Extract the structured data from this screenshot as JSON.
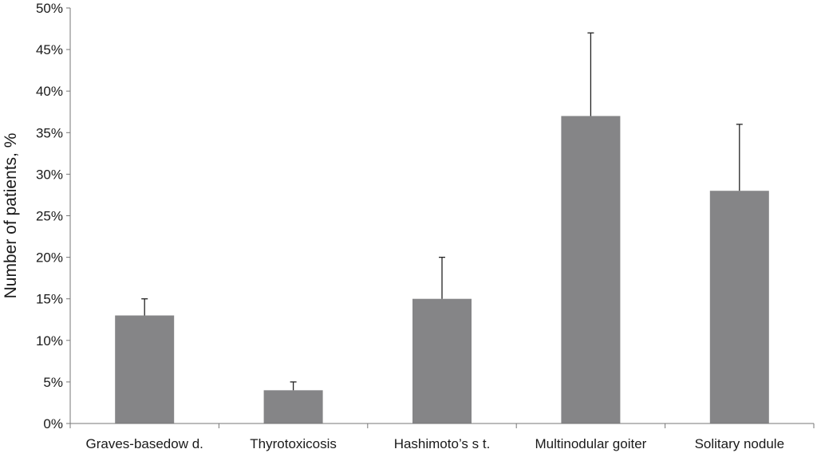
{
  "chart_data": {
    "type": "bar",
    "title": "",
    "xlabel": "",
    "ylabel": "Number of patients, %",
    "categories": [
      "Graves-basedow d.",
      "Thyrotoxicosis",
      "Hashimoto’s s t.",
      "Multinodular goiter",
      "Solitary nodule"
    ],
    "values": [
      13,
      4,
      15,
      37,
      28
    ],
    "error_upper": [
      15,
      5,
      20,
      47,
      36
    ],
    "ylim": [
      0,
      50
    ],
    "yticks": [
      0,
      5,
      10,
      15,
      20,
      25,
      30,
      35,
      40,
      45,
      50
    ],
    "ytick_labels": [
      "0%",
      "5%",
      "10%",
      "15%",
      "20%",
      "25%",
      "30%",
      "35%",
      "40%",
      "45%",
      "50%"
    ],
    "grid": false,
    "legend": "none",
    "bar_color": "#858587"
  }
}
